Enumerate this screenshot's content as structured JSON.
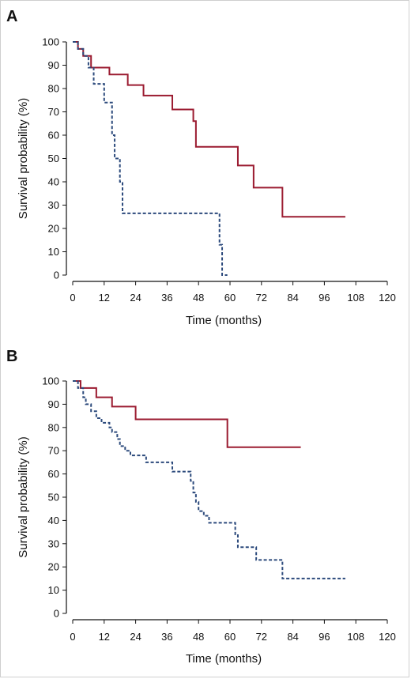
{
  "chart_data": [
    {
      "panel_label": "A",
      "type": "line",
      "step": true,
      "xlabel": "Time (months)",
      "ylabel": "Survival probability (%)",
      "xlim": [
        0,
        120
      ],
      "ylim": [
        0,
        100
      ],
      "xticks": [
        0,
        12,
        24,
        36,
        48,
        60,
        72,
        84,
        96,
        108,
        120
      ],
      "yticks": [
        0,
        10,
        20,
        30,
        40,
        50,
        60,
        70,
        80,
        90,
        100
      ],
      "grid": false,
      "series": [
        {
          "color": "#9b1b30",
          "dash": "solid",
          "x": [
            0,
            2,
            4,
            7,
            14,
            21,
            27,
            38,
            46,
            47,
            63,
            69,
            80,
            104
          ],
          "y": [
            100,
            97,
            94,
            89,
            86,
            81.5,
            77,
            71,
            66,
            55,
            47,
            37.5,
            25,
            25
          ]
        },
        {
          "color": "#2c4a7c",
          "dash": "dashed",
          "x": [
            0,
            2,
            4,
            6,
            8,
            12,
            15,
            16,
            18,
            19,
            22,
            56,
            57,
            59
          ],
          "y": [
            100,
            97,
            94,
            89,
            82,
            74,
            60,
            50,
            40,
            26.5,
            26.5,
            13,
            0,
            0
          ]
        }
      ]
    },
    {
      "panel_label": "B",
      "type": "line",
      "step": true,
      "xlabel": "Time (months)",
      "ylabel": "Survival probability (%)",
      "xlim": [
        0,
        120
      ],
      "ylim": [
        0,
        100
      ],
      "xticks": [
        0,
        12,
        24,
        36,
        48,
        60,
        72,
        84,
        96,
        108,
        120
      ],
      "yticks": [
        0,
        10,
        20,
        30,
        40,
        50,
        60,
        70,
        80,
        90,
        100
      ],
      "grid": false,
      "series": [
        {
          "color": "#9b1b30",
          "dash": "solid",
          "x": [
            0,
            3,
            9,
            15,
            24,
            59,
            87
          ],
          "y": [
            100,
            97,
            93,
            89,
            83.5,
            71.5,
            71.5
          ],
          "end_x": 87
        },
        {
          "color": "#2c4a7c",
          "dash": "dashed",
          "x": [
            0,
            2,
            4,
            5,
            7,
            9,
            11,
            14,
            15,
            17,
            18,
            20,
            22,
            28,
            38,
            45,
            46,
            47,
            48,
            50,
            52,
            62,
            63,
            66,
            70,
            80,
            104
          ],
          "y": [
            100,
            97,
            93,
            90,
            87,
            84,
            82,
            80,
            78,
            75,
            72,
            70,
            68,
            65,
            61,
            57,
            52,
            48,
            44,
            42,
            39,
            34,
            28.5,
            28.5,
            23,
            15,
            15
          ]
        }
      ]
    }
  ]
}
